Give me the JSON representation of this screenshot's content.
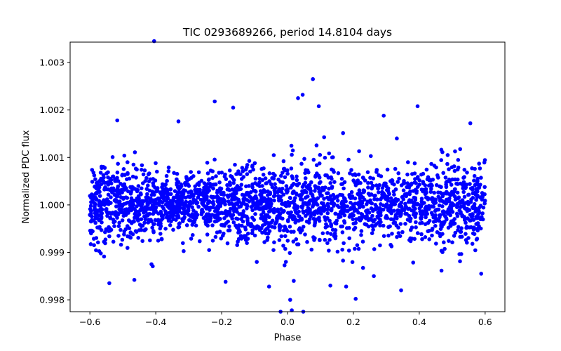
{
  "chart_data": {
    "type": "scatter",
    "title": "TIC 0293689266, period 14.8104 days",
    "xlabel": "Phase",
    "ylabel": "Normalized PDC flux",
    "xlim": [
      -0.66,
      0.66
    ],
    "ylim": [
      0.99775,
      1.00343
    ],
    "xticks": [
      -0.6,
      -0.4,
      -0.2,
      0.0,
      0.2,
      0.4,
      0.6
    ],
    "xtick_labels": [
      "−0.6",
      "−0.4",
      "−0.2",
      "0.0",
      "0.2",
      "0.4",
      "0.6"
    ],
    "yticks": [
      0.998,
      0.999,
      1.0,
      1.001,
      1.002,
      1.003
    ],
    "ytick_labels": [
      "0.998",
      "0.999",
      "1.000",
      "1.001",
      "1.002",
      "1.003"
    ],
    "grid": false,
    "marker_color": "#0000ff",
    "series": [
      {
        "name": "flux",
        "phase_range": [
          -0.6,
          0.6
        ],
        "baseline": 1.0,
        "typical_scatter": 0.0004,
        "x": [
          -0.405,
          0.077,
          0.046,
          0.032,
          -0.221,
          -0.165,
          0.095,
          0.395,
          0.292,
          -0.517,
          -0.331,
          0.013,
          0.345,
          0.207,
          0.048,
          0.178,
          -0.056,
          -0.021,
          0.008,
          0.332,
          -0.005,
          0.019,
          -0.465,
          0.555,
          -0.541,
          0.588,
          0.262,
          -0.188,
          0.13
        ],
        "y": [
          1.00345,
          1.00265,
          1.00232,
          1.00225,
          1.00218,
          1.00205,
          1.00208,
          1.00208,
          1.00188,
          1.00178,
          1.00176,
          0.99778,
          0.9982,
          0.99802,
          0.99775,
          0.99828,
          0.99828,
          0.99775,
          0.998,
          1.0014,
          0.9988,
          0.9984,
          0.99842,
          1.00172,
          0.99835,
          0.99855,
          0.9985,
          0.99838,
          0.9983
        ]
      }
    ]
  }
}
